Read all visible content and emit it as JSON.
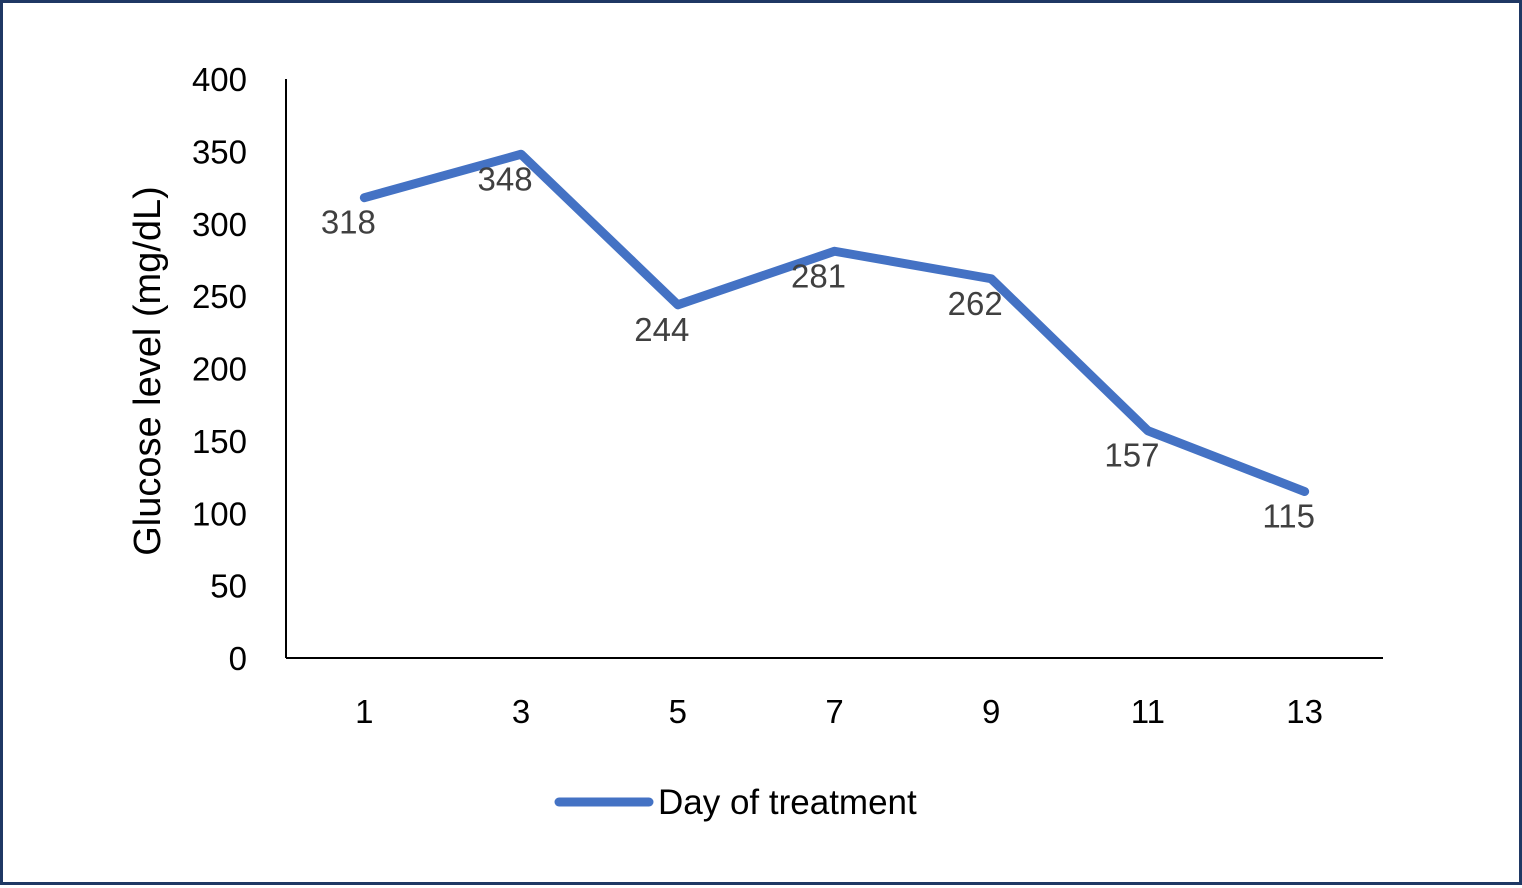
{
  "chart_data": {
    "type": "line",
    "categories": [
      "1",
      "3",
      "5",
      "7",
      "9",
      "11",
      "13"
    ],
    "series": [
      {
        "name": "Day of treatment",
        "values": [
          318,
          348,
          244,
          281,
          262,
          157,
          115
        ],
        "color": "#4472c4"
      }
    ],
    "title": "",
    "xlabel": "",
    "ylabel": "Glucose level (mg/dL)",
    "ylim": [
      0,
      400
    ],
    "yticks": [
      "0",
      "50",
      "100",
      "150",
      "200",
      "250",
      "300",
      "350",
      "400"
    ],
    "data_labels": [
      "318",
      "348",
      "244",
      "281",
      "262",
      "157",
      "115"
    ],
    "grid": false,
    "legend": "bottom",
    "colors": {
      "line": "#4472c4",
      "border": "#1f3864",
      "labels": "#404040"
    }
  }
}
